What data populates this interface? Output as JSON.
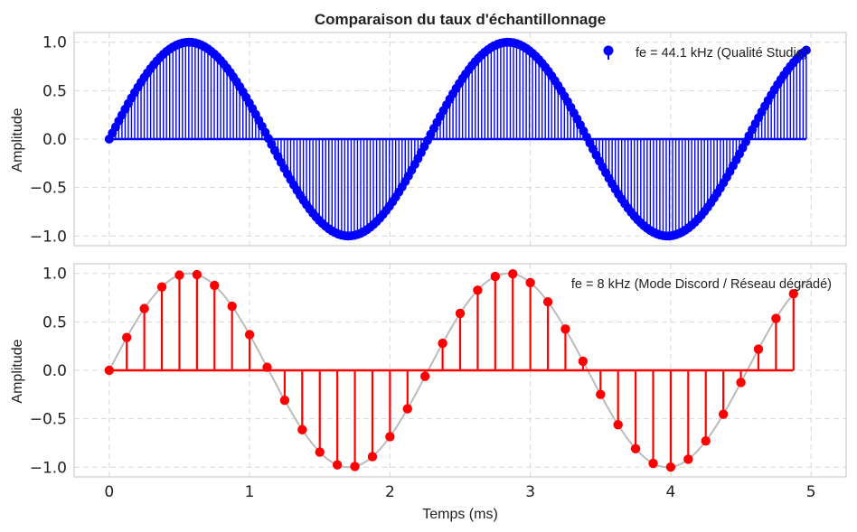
{
  "title": "Comparaison du taux d'échantillonnage",
  "xlabel": "Temps (ms)",
  "chart_data": [
    {
      "type": "stem",
      "title": "Comparaison du taux d'échantillonnage",
      "ylabel": "Amplitude",
      "xlim": [
        -0.25,
        5.25
      ],
      "ylim": [
        -1.1,
        1.1
      ],
      "xticks": [
        0,
        1,
        2,
        3,
        4,
        5
      ],
      "yticks": [
        -1.0,
        -0.5,
        0.0,
        0.5,
        1.0
      ],
      "ytick_labels": [
        "−1.0",
        "−0.5",
        "0.0",
        "0.5",
        "1.0"
      ],
      "grid": true,
      "legend": {
        "position": "top-right",
        "entries": [
          "fe = 44.1 kHz (Qualité Studio)"
        ]
      },
      "signal": {
        "function": "sin",
        "frequency_khz": 0.44,
        "duration_ms": 5
      },
      "series": [
        {
          "name": "fe = 44.1 kHz (Qualité Studio)",
          "sample_rate_khz": 44.1,
          "color": "#0000ff",
          "t_ms_start": 0,
          "t_ms_end": 5
        }
      ]
    },
    {
      "type": "stem",
      "ylabel": "Amplitude",
      "xlabel": "Temps (ms)",
      "xlim": [
        -0.25,
        5.25
      ],
      "ylim": [
        -1.1,
        1.1
      ],
      "xticks": [
        0,
        1,
        2,
        3,
        4,
        5
      ],
      "xtick_labels": [
        "0",
        "1",
        "2",
        "3",
        "4",
        "5"
      ],
      "yticks": [
        -1.0,
        -0.5,
        0.0,
        0.5,
        1.0
      ],
      "ytick_labels": [
        "−1.0",
        "−0.5",
        "0.0",
        "0.5",
        "1.0"
      ],
      "grid": true,
      "legend": {
        "position": "top-right",
        "entries": [
          "fe = 8 kHz (Mode Discord / Réseau dégradé)"
        ]
      },
      "signal": {
        "function": "sin",
        "frequency_khz": 0.44,
        "duration_ms": 5
      },
      "series": [
        {
          "name": "fe = 8 kHz (Mode Discord / Réseau dégradé)",
          "sample_rate_khz": 8,
          "color": "#ff0000",
          "t_ms_start": 0,
          "t_ms_end": 5
        },
        {
          "role": "continuous signal",
          "color": "#bbbbbb"
        }
      ]
    }
  ]
}
